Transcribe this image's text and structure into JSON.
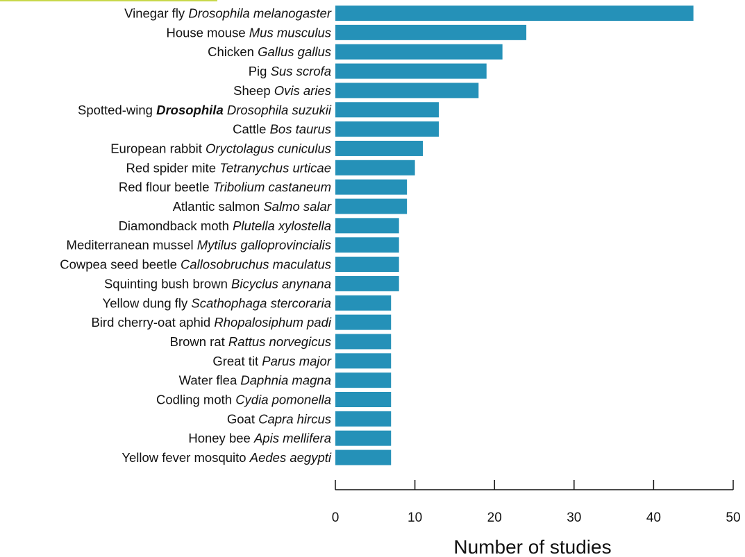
{
  "accent_color": "#c8d84a",
  "bar_color": "#2591b8",
  "chart_data": {
    "type": "bar",
    "orientation": "horizontal",
    "title": "",
    "xlabel": "Number of studies",
    "ylabel": "",
    "xlim": [
      0,
      50
    ],
    "xticks": [
      0,
      10,
      20,
      30,
      40,
      50
    ],
    "grid": false,
    "categories": [
      {
        "common": "Vinegar fly",
        "emphasis": "",
        "species": "Drosophila melanogaster"
      },
      {
        "common": "House mouse",
        "emphasis": "",
        "species": "Mus musculus"
      },
      {
        "common": "Chicken",
        "emphasis": "",
        "species": "Gallus gallus"
      },
      {
        "common": "Pig",
        "emphasis": "",
        "species": "Sus scrofa"
      },
      {
        "common": "Sheep",
        "emphasis": "",
        "species": "Ovis aries"
      },
      {
        "common": "Spotted-wing",
        "emphasis": "Drosophila",
        "species": "Drosophila suzukii"
      },
      {
        "common": "Cattle",
        "emphasis": "",
        "species": "Bos taurus"
      },
      {
        "common": "European rabbit",
        "emphasis": "",
        "species": "Oryctolagus cuniculus"
      },
      {
        "common": "Red spider mite",
        "emphasis": "",
        "species": "Tetranychus urticae"
      },
      {
        "common": "Red flour beetle",
        "emphasis": "",
        "species": "Tribolium castaneum"
      },
      {
        "common": "Atlantic salmon",
        "emphasis": "",
        "species": "Salmo salar"
      },
      {
        "common": "Diamondback moth",
        "emphasis": "",
        "species": "Plutella xylostella"
      },
      {
        "common": "Mediterranean mussel",
        "emphasis": "",
        "species": "Mytilus galloprovincialis"
      },
      {
        "common": "Cowpea seed beetle",
        "emphasis": "",
        "species": "Callosobruchus maculatus"
      },
      {
        "common": "Squinting bush brown",
        "emphasis": "",
        "species": "Bicyclus anynana"
      },
      {
        "common": "Yellow dung fly",
        "emphasis": "",
        "species": "Scathophaga stercoraria"
      },
      {
        "common": "Bird cherry-oat aphid",
        "emphasis": "",
        "species": "Rhopalosiphum padi"
      },
      {
        "common": "Brown rat",
        "emphasis": "",
        "species": "Rattus norvegicus"
      },
      {
        "common": "Great tit",
        "emphasis": "",
        "species": "Parus major"
      },
      {
        "common": "Water flea",
        "emphasis": "",
        "species": "Daphnia magna"
      },
      {
        "common": "Codling moth",
        "emphasis": "",
        "species": "Cydia pomonella"
      },
      {
        "common": "Goat",
        "emphasis": "",
        "species": "Capra hircus"
      },
      {
        "common": "Honey bee",
        "emphasis": "",
        "species": "Apis mellifera"
      },
      {
        "common": "Yellow fever mosquito",
        "emphasis": "",
        "species": "Aedes aegypti"
      }
    ],
    "values": [
      45,
      24,
      21,
      19,
      18,
      13,
      13,
      11,
      10,
      9,
      9,
      8,
      8,
      8,
      8,
      7,
      7,
      7,
      7,
      7,
      7,
      7,
      7,
      7
    ]
  }
}
